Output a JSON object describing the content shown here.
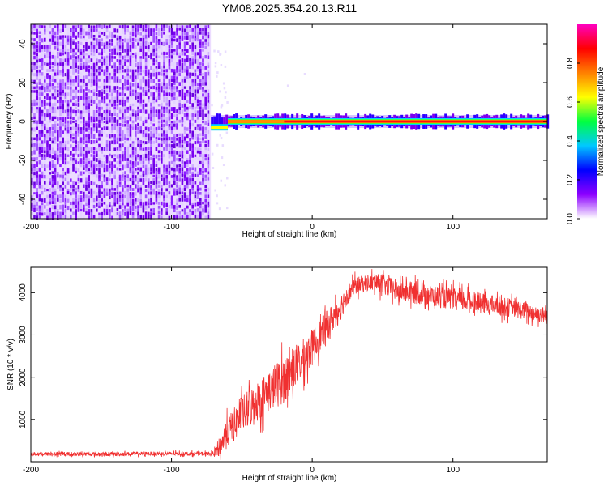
{
  "figure": {
    "title": "YM08.2025.354.20.13.R11"
  },
  "chart_data": [
    {
      "type": "heatmap",
      "title": "YM08.2025.354.20.13.R11",
      "xlabel": "Height of straight line (km)",
      "ylabel": "Frequency (Hz)",
      "xlim": [
        -200,
        167
      ],
      "ylim": [
        -50,
        50
      ],
      "xticks": [
        "-200",
        "-100",
        "0",
        "100"
      ],
      "yticks": [
        "-40",
        "-20",
        "0",
        "20",
        "40"
      ],
      "noise_region_x": [
        -200,
        -72
      ],
      "signal": {
        "x_start": -72,
        "x_end": 167,
        "frequency_hz": 0,
        "early_offset": {
          "x": [
            -72,
            -60
          ],
          "frequency_hz": -3
        }
      },
      "colorbar": {
        "label": "Normalized spectral amplitude",
        "range": [
          0,
          1
        ],
        "ticks": [
          "0.0",
          "0.2",
          "0.4",
          "0.6",
          "0.8"
        ],
        "colors": [
          "#ffffff",
          "#8c00ff",
          "#0000ff",
          "#00c8ff",
          "#00ff40",
          "#ffff00",
          "#ff8000",
          "#ff0000",
          "#ff00c0"
        ]
      },
      "grid": false,
      "legend": "none"
    },
    {
      "type": "line",
      "xlabel": "Height of straight line (km)",
      "ylabel": "SNR (10 * v/v)",
      "xlim": [
        -200,
        167
      ],
      "ylim": [
        0,
        4600
      ],
      "xticks": [
        "-200",
        "-100",
        "0",
        "100"
      ],
      "yticks": [
        "1000",
        "2000",
        "3000",
        "4000"
      ],
      "color": "#f03030",
      "grid": false,
      "legend": "none",
      "series": [
        {
          "x": [
            -200,
            -180,
            -160,
            -140,
            -120,
            -100,
            -80,
            -70,
            -66,
            -60,
            -50,
            -40,
            -30,
            -20,
            -10,
            0,
            10,
            20,
            25,
            30,
            40,
            50,
            60,
            80,
            100,
            120,
            140,
            160,
            167
          ],
          "y": [
            180,
            180,
            180,
            180,
            190,
            190,
            190,
            190,
            350,
            700,
            1100,
            1400,
            1700,
            1950,
            2300,
            2700,
            3200,
            3650,
            3950,
            4150,
            4250,
            4200,
            4050,
            3950,
            3850,
            3750,
            3650,
            3500,
            3450
          ],
          "spread": [
            60,
            60,
            60,
            60,
            60,
            60,
            60,
            60,
            300,
            450,
            550,
            600,
            650,
            700,
            600,
            550,
            450,
            400,
            300,
            250,
            250,
            300,
            320,
            320,
            320,
            300,
            280,
            250,
            250
          ]
        }
      ]
    }
  ]
}
